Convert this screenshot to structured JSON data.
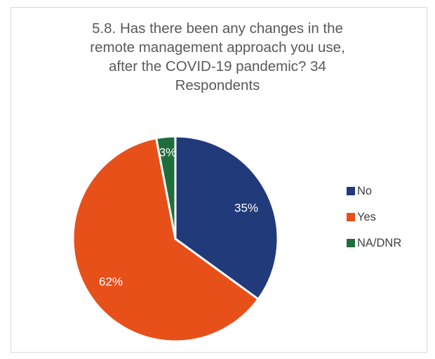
{
  "title_lines": [
    "5.8. Has there been any changes in the",
    "remote management approach you use,",
    "after the COVID-19 pandemic? 34",
    "Respondents"
  ],
  "chart_data": {
    "type": "pie",
    "title": "5.8. Has there been any changes in the remote management approach you use, after the COVID-19 pandemic? 34 Respondents",
    "categories": [
      "No",
      "Yes",
      "NA/DNR"
    ],
    "values": [
      35,
      62,
      3
    ],
    "data_labels": [
      "35%",
      "62%",
      "3%"
    ],
    "colors": [
      "#203a7a",
      "#e8501a",
      "#1f6d3c"
    ],
    "legend_position": "right"
  }
}
